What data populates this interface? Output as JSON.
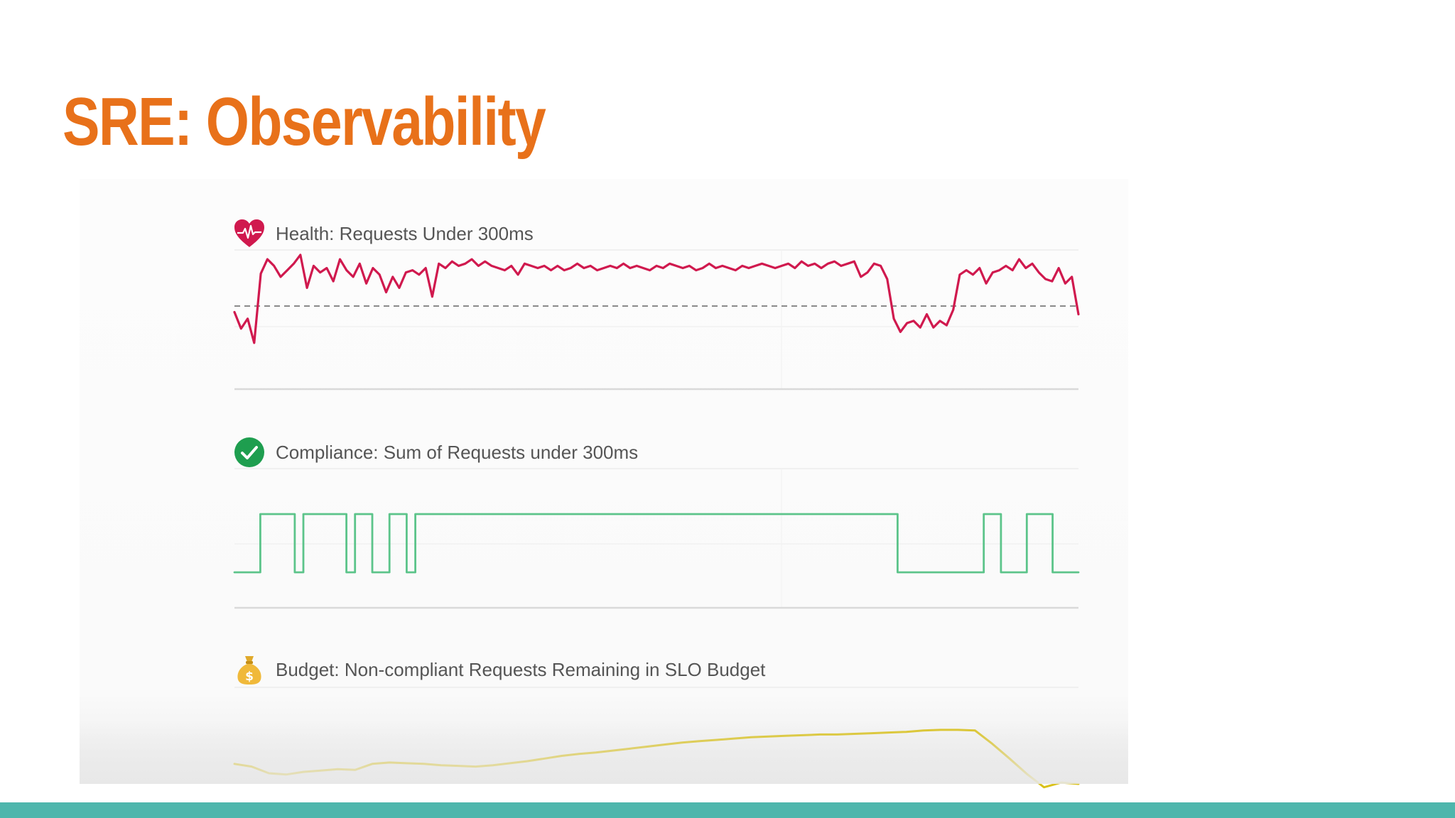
{
  "slide": {
    "title": "SRE: Observability"
  },
  "colors": {
    "title": "#e8711a",
    "health_line": "#d0194e",
    "compliance_line": "#5cc48a",
    "budget_line": "#d9c11a",
    "footer_bar": "#4db6ac"
  },
  "chart_data": [
    {
      "type": "line",
      "icon": "heart-pulse-icon",
      "title": "Health: Requests Under 300ms",
      "reference_line": "dashed",
      "grid": true,
      "series": [
        {
          "values": [
            0.7,
            0.55,
            0.64,
            0.42,
            1.05,
            1.18,
            1.12,
            1.02,
            1.08,
            1.14,
            1.22,
            0.92,
            1.12,
            1.06,
            1.1,
            0.98,
            1.18,
            1.08,
            1.02,
            1.14,
            0.96,
            1.1,
            1.04,
            0.88,
            1.02,
            0.92,
            1.06,
            1.08,
            1.04,
            1.1,
            0.84,
            1.14,
            1.1,
            1.16,
            1.12,
            1.14,
            1.18,
            1.12,
            1.16,
            1.12,
            1.1,
            1.08,
            1.12,
            1.04,
            1.14,
            1.12,
            1.1,
            1.12,
            1.08,
            1.12,
            1.08,
            1.1,
            1.14,
            1.1,
            1.12,
            1.08,
            1.1,
            1.12,
            1.1,
            1.14,
            1.1,
            1.12,
            1.1,
            1.08,
            1.12,
            1.1,
            1.14,
            1.12,
            1.1,
            1.12,
            1.08,
            1.1,
            1.14,
            1.1,
            1.12,
            1.1,
            1.08,
            1.12,
            1.1,
            1.12,
            1.14,
            1.12,
            1.1,
            1.12,
            1.14,
            1.1,
            1.16,
            1.12,
            1.14,
            1.1,
            1.14,
            1.16,
            1.12,
            1.14,
            1.16,
            1.02,
            1.06,
            1.14,
            1.12,
            1.0,
            0.64,
            0.52,
            0.6,
            0.62,
            0.56,
            0.68,
            0.56,
            0.62,
            0.58,
            0.72,
            1.04,
            1.08,
            1.04,
            1.1,
            0.96,
            1.06,
            1.08,
            1.12,
            1.08,
            1.18,
            1.1,
            1.14,
            1.06,
            1.0,
            0.98,
            1.1,
            0.96,
            1.02,
            0.68
          ]
        }
      ]
    },
    {
      "type": "line",
      "step": true,
      "icon": "check-circle-icon",
      "title": "Compliance: Sum of Requests under 300ms",
      "grid": true,
      "series": [
        {
          "values": [
            0,
            0,
            0,
            1,
            1,
            1,
            1,
            0,
            1,
            1,
            1,
            1,
            1,
            0,
            1,
            1,
            0,
            0,
            1,
            1,
            0,
            1,
            1,
            1,
            1,
            1,
            1,
            1,
            1,
            1,
            1,
            1,
            1,
            1,
            1,
            1,
            1,
            1,
            1,
            1,
            1,
            1,
            1,
            1,
            1,
            1,
            1,
            1,
            1,
            1,
            1,
            1,
            1,
            1,
            1,
            1,
            1,
            1,
            1,
            1,
            1,
            1,
            1,
            1,
            1,
            1,
            1,
            1,
            1,
            1,
            1,
            1,
            1,
            1,
            1,
            1,
            1,
            0,
            0,
            0,
            0,
            0,
            0,
            0,
            0,
            0,
            0,
            1,
            1,
            0,
            0,
            0,
            1,
            1,
            1,
            0,
            0,
            0,
            0
          ]
        }
      ]
    },
    {
      "type": "line",
      "icon": "money-bag-icon",
      "title": "Budget: Non-compliant Requests Remaining in SLO Budget",
      "grid": true,
      "series": [
        {
          "values": [
            0.3,
            0.26,
            0.16,
            0.14,
            0.18,
            0.2,
            0.22,
            0.21,
            0.3,
            0.32,
            0.31,
            0.3,
            0.28,
            0.27,
            0.26,
            0.28,
            0.31,
            0.34,
            0.38,
            0.42,
            0.45,
            0.47,
            0.5,
            0.53,
            0.56,
            0.59,
            0.62,
            0.64,
            0.66,
            0.68,
            0.7,
            0.71,
            0.72,
            0.73,
            0.74,
            0.74,
            0.75,
            0.76,
            0.77,
            0.78,
            0.8,
            0.81,
            0.81,
            0.8,
            0.6,
            0.38,
            0.15,
            -0.05,
            0.02,
            0.0
          ]
        }
      ]
    }
  ]
}
